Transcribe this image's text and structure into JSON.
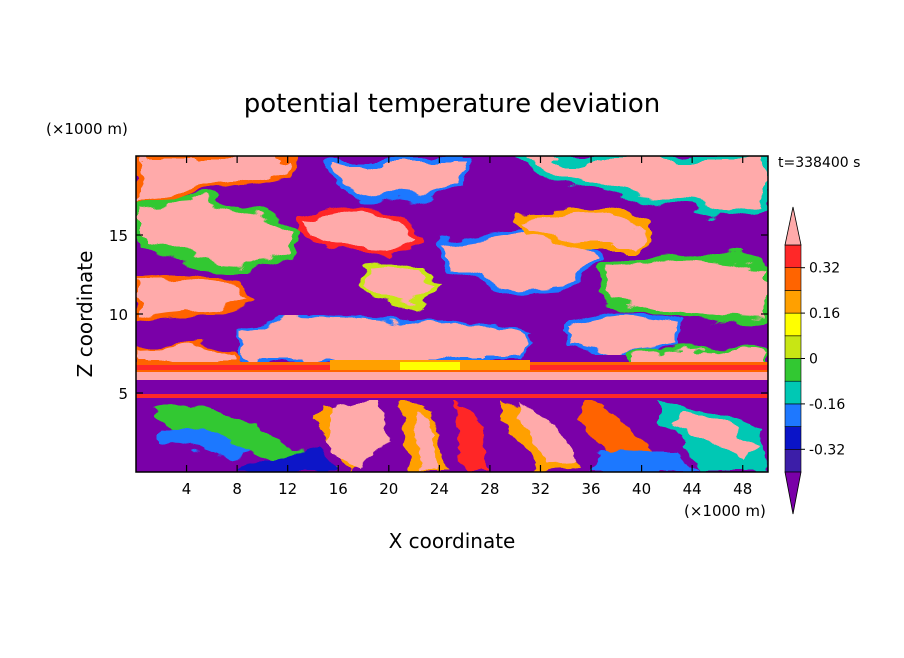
{
  "chart_data": {
    "type": "heatmap",
    "title": "potential temperature deviation",
    "xlabel": "X coordinate",
    "ylabel": "Z coordinate",
    "x_unit": "(×1000 m)",
    "y_unit": "(×1000 m)",
    "time_label": "t=338400 s",
    "xlim": [
      0,
      50
    ],
    "ylim": [
      0,
      20
    ],
    "x_ticks": [
      4,
      8,
      12,
      16,
      20,
      24,
      28,
      32,
      36,
      40,
      44,
      48
    ],
    "y_ticks": [
      5,
      10,
      15
    ],
    "colorbar": {
      "levels": [
        -0.4,
        -0.32,
        -0.24,
        -0.16,
        -0.08,
        0,
        0.08,
        0.16,
        0.24,
        0.32,
        0.4
      ],
      "labels": [
        "0.32",
        "0.16",
        "0",
        "-0.16",
        "-0.32"
      ],
      "label_values": [
        0.32,
        0.16,
        0,
        -0.16,
        -0.32
      ],
      "colors": [
        "#7a00a8",
        "#3c1ea8",
        "#0a14c8",
        "#1e78ff",
        "#00c8b4",
        "#32c832",
        "#c8e614",
        "#ffff00",
        "#ffa000",
        "#ff6400",
        "#ff2828",
        "#ffaaaa"
      ],
      "over_color": "#ffaaaa",
      "under_color": "#7a00a8"
    },
    "regions": {
      "upper": "alternating pink (>0.4) and purple (<-0.4) patches with thin colored transition bands",
      "inversion_layer": "pink and orange/red band around Z=5.5–7",
      "lower": "multicolored wave structures below Z≈5 with purple background"
    }
  }
}
